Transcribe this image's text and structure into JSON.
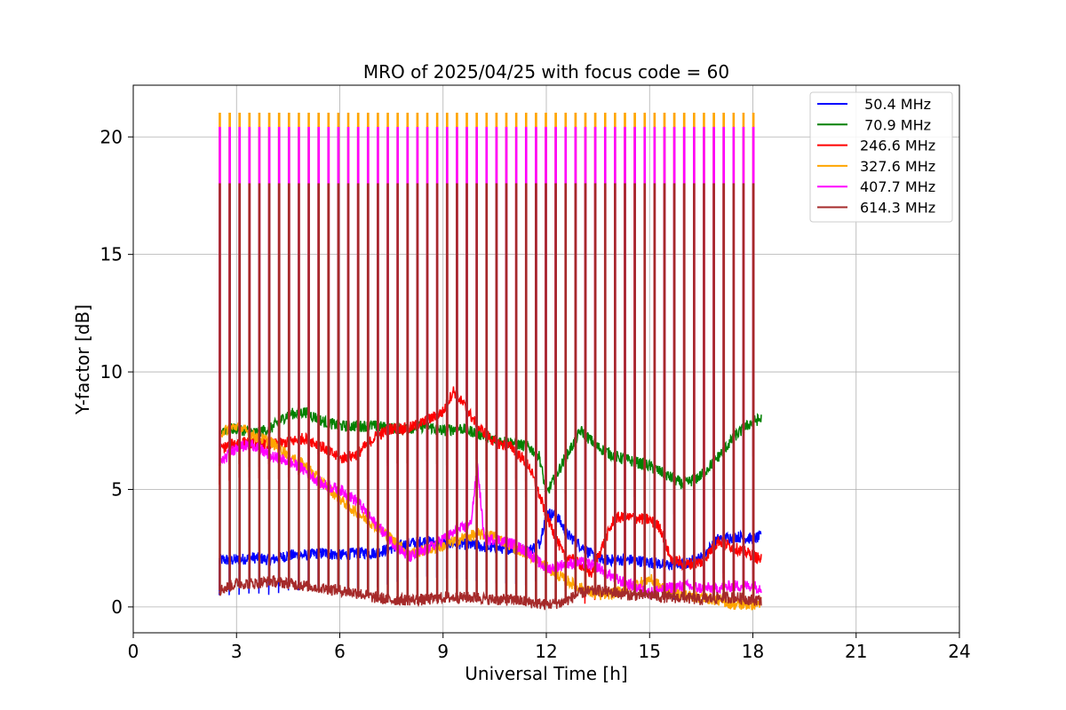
{
  "chart_data": {
    "type": "line",
    "title": "MRO of 2025/04/25 with focus code = 60",
    "xlabel": "Universal Time [h]",
    "ylabel": "Y-factor [dB]",
    "xlim": [
      0,
      24
    ],
    "ylim": [
      -1.1,
      22.2
    ],
    "xticks": [
      0,
      3,
      6,
      9,
      12,
      15,
      18,
      21,
      24
    ],
    "xtick_labels": [
      "0",
      "3",
      "6",
      "9",
      "12",
      "15",
      "18",
      "21",
      "24"
    ],
    "yticks": [
      0,
      5,
      10,
      15,
      20
    ],
    "ytick_labels": [
      "0",
      "5",
      "10",
      "15",
      "20"
    ],
    "grid": true,
    "legend_position": "top-right",
    "spikes": {
      "description_free": true,
      "start": 2.5,
      "end": 18.0,
      "count": 55,
      "peaks": [
        {
          "series": "327.6 MHz",
          "value": 21.0
        },
        {
          "series": "407.7 MHz",
          "value": 20.4
        },
        {
          "series": "614.3 MHz",
          "value": 18.0
        }
      ]
    },
    "series": [
      {
        "name": " 50.4 MHz",
        "color": "#0000ff",
        "x": [
          2.5,
          3.0,
          3.5,
          4.0,
          4.5,
          5.0,
          5.5,
          6.0,
          6.5,
          7.0,
          7.5,
          8.0,
          8.5,
          9.0,
          9.5,
          10.0,
          10.5,
          11.0,
          11.5,
          11.8,
          12.0,
          12.3,
          12.6,
          13.0,
          13.5,
          14.0,
          14.5,
          15.0,
          15.5,
          16.0,
          16.5,
          17.0,
          17.5,
          18.0,
          18.25
        ],
        "y": [
          2.0,
          2.0,
          2.1,
          2.0,
          2.2,
          2.2,
          2.3,
          2.2,
          2.3,
          2.3,
          2.5,
          2.7,
          2.8,
          2.7,
          2.7,
          2.6,
          2.5,
          2.5,
          2.4,
          2.7,
          4.0,
          3.9,
          3.1,
          2.6,
          2.0,
          2.0,
          2.0,
          1.9,
          1.8,
          1.8,
          2.1,
          2.9,
          3.0,
          2.9,
          3.0
        ]
      },
      {
        "name": " 70.9 MHz",
        "color": "#008000",
        "x": [
          2.5,
          3.0,
          3.5,
          4.0,
          4.5,
          5.0,
          5.5,
          6.0,
          6.5,
          7.0,
          7.5,
          8.0,
          8.5,
          9.0,
          9.5,
          10.0,
          10.5,
          11.0,
          11.5,
          11.8,
          12.0,
          12.5,
          13.0,
          13.5,
          14.0,
          14.5,
          15.0,
          15.5,
          16.0,
          16.5,
          17.0,
          17.5,
          18.0,
          18.25
        ],
        "y": [
          7.5,
          7.6,
          7.4,
          7.6,
          8.2,
          8.3,
          7.9,
          7.7,
          7.7,
          7.7,
          7.6,
          7.6,
          7.7,
          7.5,
          7.6,
          7.4,
          7.1,
          7.0,
          6.8,
          6.4,
          4.8,
          6.2,
          7.5,
          6.8,
          6.4,
          6.2,
          6.0,
          5.6,
          5.2,
          5.6,
          6.4,
          7.3,
          7.9,
          8.0
        ]
      },
      {
        "name": "246.6 MHz",
        "color": "#ff0000",
        "x": [
          2.5,
          3.0,
          3.5,
          4.0,
          4.5,
          5.0,
          5.5,
          6.0,
          6.5,
          7.0,
          7.5,
          8.0,
          8.5,
          9.0,
          9.3,
          9.6,
          10.0,
          10.5,
          11.0,
          11.5,
          12.0,
          12.5,
          13.0,
          13.3,
          13.6,
          14.0,
          14.5,
          15.0,
          15.3,
          15.6,
          16.0,
          16.5,
          17.0,
          17.5,
          18.0,
          18.25
        ],
        "y": [
          6.7,
          7.0,
          7.0,
          6.9,
          7.0,
          7.2,
          6.8,
          6.3,
          6.5,
          7.2,
          7.6,
          7.6,
          7.9,
          8.3,
          9.2,
          8.6,
          7.7,
          7.0,
          6.8,
          6.0,
          3.9,
          2.2,
          1.8,
          1.4,
          2.5,
          3.8,
          3.8,
          3.7,
          3.4,
          2.1,
          1.8,
          1.9,
          2.8,
          2.5,
          2.2,
          2.0
        ]
      },
      {
        "name": "327.6 MHz",
        "color": "#ffa500",
        "x": [
          2.5,
          3.0,
          3.5,
          4.0,
          4.5,
          5.0,
          5.5,
          6.0,
          6.5,
          7.0,
          7.5,
          8.0,
          8.5,
          9.0,
          9.5,
          10.0,
          10.5,
          11.0,
          11.5,
          12.0,
          12.5,
          13.0,
          13.5,
          14.0,
          14.5,
          15.0,
          15.5,
          16.0,
          16.5,
          17.0,
          17.5,
          18.0,
          18.25
        ],
        "y": [
          7.4,
          7.7,
          7.3,
          7.0,
          6.5,
          6.0,
          5.3,
          4.6,
          4.0,
          3.5,
          2.9,
          2.3,
          2.4,
          2.6,
          2.9,
          3.1,
          3.0,
          2.6,
          2.2,
          1.7,
          1.2,
          0.8,
          0.5,
          0.6,
          0.9,
          1.2,
          0.7,
          0.5,
          0.4,
          0.3,
          0.1,
          0.1,
          0.2
        ]
      },
      {
        "name": "407.7 MHz",
        "color": "#ff00ff",
        "x": [
          2.5,
          3.0,
          3.5,
          4.0,
          4.5,
          5.0,
          5.5,
          6.0,
          6.5,
          7.0,
          7.5,
          8.0,
          8.5,
          9.0,
          9.5,
          9.8,
          10.0,
          10.2,
          10.5,
          11.0,
          11.5,
          12.0,
          12.5,
          13.0,
          13.5,
          14.0,
          14.5,
          15.0,
          15.5,
          16.0,
          16.5,
          17.0,
          17.5,
          18.0,
          18.25
        ],
        "y": [
          6.1,
          6.8,
          6.9,
          6.4,
          6.2,
          5.8,
          5.2,
          5.0,
          4.5,
          3.6,
          2.8,
          2.1,
          2.4,
          2.9,
          3.3,
          3.5,
          6.0,
          2.8,
          2.9,
          2.7,
          2.3,
          1.6,
          1.8,
          1.9,
          1.7,
          1.2,
          0.9,
          0.6,
          0.8,
          0.9,
          0.8,
          0.8,
          0.9,
          0.9,
          0.8
        ]
      },
      {
        "name": "614.3 MHz",
        "color": "#a52a2a",
        "x": [
          2.5,
          3.0,
          3.5,
          4.0,
          4.5,
          5.0,
          5.5,
          6.0,
          6.5,
          7.0,
          7.5,
          8.0,
          8.5,
          9.0,
          9.5,
          10.0,
          10.5,
          11.0,
          11.5,
          12.0,
          12.5,
          13.0,
          13.5,
          14.0,
          14.5,
          15.0,
          15.5,
          16.0,
          16.5,
          17.0,
          17.5,
          18.0,
          18.25
        ],
        "y": [
          0.7,
          1.0,
          1.0,
          1.1,
          1.0,
          0.9,
          0.8,
          0.7,
          0.6,
          0.4,
          0.3,
          0.3,
          0.3,
          0.4,
          0.4,
          0.4,
          0.3,
          0.3,
          0.2,
          0.1,
          0.2,
          0.6,
          0.7,
          0.6,
          0.5,
          0.5,
          0.4,
          0.4,
          0.3,
          0.4,
          0.4,
          0.3,
          0.3
        ]
      }
    ]
  }
}
